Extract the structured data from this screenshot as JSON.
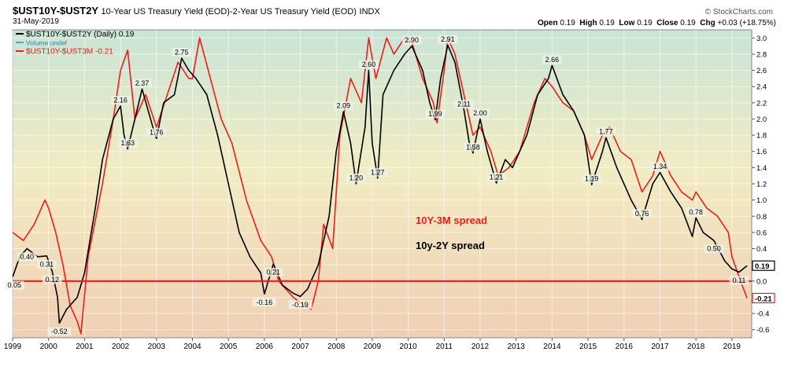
{
  "header": {
    "symbol": "$UST10Y-$UST2Y",
    "description": "10-Year US Treasury Yield (EOD)-2-Year US Treasury Yield (EOD)",
    "index_tag": "INDX",
    "date": "31-May-2019",
    "copyright": "© StockCharts.com",
    "ohlc": {
      "open_label": "Open",
      "open": "0.19",
      "high_label": "High",
      "high": "0.19",
      "low_label": "Low",
      "low": "0.19",
      "close_label": "Close",
      "close": "0.19",
      "chg_label": "Chg",
      "chg": "+0.03 (+18.75%)"
    }
  },
  "legend": [
    {
      "label": "$UST10Y-$UST2Y (Daily) 0.19",
      "color": "#000000"
    },
    {
      "label": "Volume undef",
      "color": "#4da6d6"
    },
    {
      "label": "$UST10Y-$UST3M -0.21",
      "color": "#e8201a"
    }
  ],
  "annotations": {
    "spread_3m": "10Y-3M spread",
    "spread_2y": "10y-2Y spread"
  },
  "chart_data": {
    "type": "line",
    "xlim": [
      1999.0,
      2019.55
    ],
    "ylim": [
      -0.7,
      3.1
    ],
    "x_ticks": [
      "1999",
      "2000",
      "2001",
      "2002",
      "2003",
      "2004",
      "2005",
      "2006",
      "2007",
      "2008",
      "2009",
      "2010",
      "2011",
      "2012",
      "2013",
      "2014",
      "2015",
      "2016",
      "2017",
      "2018",
      "2019"
    ],
    "y_ticks": [
      "-0.6",
      "-0.4",
      "-0.2",
      "0.0",
      "0.2",
      "0.4",
      "0.6",
      "0.8",
      "1.0",
      "1.2",
      "1.4",
      "1.6",
      "1.8",
      "2.0",
      "2.2",
      "2.4",
      "2.6",
      "2.8",
      "3.0"
    ],
    "zero_line": 0.0,
    "series": [
      {
        "name": "$UST10Y-$UST2Y (Daily)",
        "color": "#000000",
        "last_value": "0.19",
        "points": [
          [
            1999.0,
            0.05
          ],
          [
            1999.2,
            0.3
          ],
          [
            1999.4,
            0.4
          ],
          [
            1999.7,
            0.3
          ],
          [
            1999.95,
            0.31
          ],
          [
            2000.1,
            0.12
          ],
          [
            2000.25,
            -0.2
          ],
          [
            2000.3,
            -0.52
          ],
          [
            2000.5,
            -0.35
          ],
          [
            2000.8,
            -0.2
          ],
          [
            2001.0,
            0.1
          ],
          [
            2001.3,
            0.9
          ],
          [
            2001.5,
            1.5
          ],
          [
            2001.8,
            2.0
          ],
          [
            2002.0,
            2.16
          ],
          [
            2002.1,
            1.8
          ],
          [
            2002.2,
            1.63
          ],
          [
            2002.4,
            2.0
          ],
          [
            2002.6,
            2.37
          ],
          [
            2002.9,
            1.9
          ],
          [
            2003.0,
            1.76
          ],
          [
            2003.2,
            2.2
          ],
          [
            2003.5,
            2.3
          ],
          [
            2003.7,
            2.75
          ],
          [
            2003.9,
            2.6
          ],
          [
            2004.1,
            2.5
          ],
          [
            2004.4,
            2.3
          ],
          [
            2004.7,
            1.8
          ],
          [
            2005.0,
            1.2
          ],
          [
            2005.3,
            0.6
          ],
          [
            2005.6,
            0.3
          ],
          [
            2005.9,
            0.1
          ],
          [
            2006.0,
            -0.16
          ],
          [
            2006.25,
            0.21
          ],
          [
            2006.5,
            -0.05
          ],
          [
            2006.8,
            -0.15
          ],
          [
            2007.0,
            -0.19
          ],
          [
            2007.2,
            -0.1
          ],
          [
            2007.5,
            0.2
          ],
          [
            2007.8,
            0.8
          ],
          [
            2008.0,
            1.6
          ],
          [
            2008.2,
            2.09
          ],
          [
            2008.4,
            1.7
          ],
          [
            2008.55,
            1.2
          ],
          [
            2008.8,
            1.9
          ],
          [
            2008.9,
            2.6
          ],
          [
            2009.0,
            1.7
          ],
          [
            2009.15,
            1.27
          ],
          [
            2009.3,
            2.3
          ],
          [
            2009.6,
            2.6
          ],
          [
            2009.9,
            2.8
          ],
          [
            2010.1,
            2.9
          ],
          [
            2010.4,
            2.6
          ],
          [
            2010.6,
            2.2
          ],
          [
            2010.75,
            1.99
          ],
          [
            2010.9,
            2.5
          ],
          [
            2011.1,
            2.91
          ],
          [
            2011.3,
            2.7
          ],
          [
            2011.55,
            2.11
          ],
          [
            2011.7,
            1.7
          ],
          [
            2011.8,
            1.58
          ],
          [
            2012.0,
            2.0
          ],
          [
            2012.2,
            1.6
          ],
          [
            2012.45,
            1.21
          ],
          [
            2012.7,
            1.5
          ],
          [
            2012.9,
            1.4
          ],
          [
            2013.3,
            1.8
          ],
          [
            2013.6,
            2.3
          ],
          [
            2013.9,
            2.5
          ],
          [
            2014.0,
            2.66
          ],
          [
            2014.3,
            2.3
          ],
          [
            2014.6,
            2.1
          ],
          [
            2014.9,
            1.8
          ],
          [
            2015.1,
            1.19
          ],
          [
            2015.4,
            1.6
          ],
          [
            2015.5,
            1.77
          ],
          [
            2015.8,
            1.4
          ],
          [
            2016.2,
            1.0
          ],
          [
            2016.5,
            0.76
          ],
          [
            2016.8,
            1.2
          ],
          [
            2017.0,
            1.34
          ],
          [
            2017.3,
            1.1
          ],
          [
            2017.6,
            0.9
          ],
          [
            2017.9,
            0.55
          ],
          [
            2018.0,
            0.78
          ],
          [
            2018.2,
            0.6
          ],
          [
            2018.5,
            0.5
          ],
          [
            2018.8,
            0.25
          ],
          [
            2019.0,
            0.15
          ],
          [
            2019.2,
            0.11
          ],
          [
            2019.42,
            0.19
          ]
        ]
      },
      {
        "name": "$UST10Y-$UST3M",
        "color": "#e8201a",
        "last_value": "-0.21",
        "points": [
          [
            1999.0,
            0.6
          ],
          [
            1999.3,
            0.5
          ],
          [
            1999.6,
            0.7
          ],
          [
            1999.9,
            1.0
          ],
          [
            2000.0,
            0.9
          ],
          [
            2000.2,
            0.6
          ],
          [
            2000.4,
            0.2
          ],
          [
            2000.6,
            -0.3
          ],
          [
            2000.8,
            -0.5
          ],
          [
            2000.9,
            -0.65
          ],
          [
            2001.1,
            0.3
          ],
          [
            2001.5,
            1.2
          ],
          [
            2001.8,
            2.0
          ],
          [
            2002.0,
            2.6
          ],
          [
            2002.2,
            2.85
          ],
          [
            2002.4,
            2.0
          ],
          [
            2002.7,
            2.3
          ],
          [
            2003.0,
            1.9
          ],
          [
            2003.3,
            2.3
          ],
          [
            2003.6,
            2.7
          ],
          [
            2003.9,
            2.5
          ],
          [
            2004.0,
            2.5
          ],
          [
            2004.2,
            3.0
          ],
          [
            2004.5,
            2.5
          ],
          [
            2004.8,
            2.0
          ],
          [
            2005.1,
            1.7
          ],
          [
            2005.5,
            1.0
          ],
          [
            2005.9,
            0.5
          ],
          [
            2006.2,
            0.3
          ],
          [
            2006.4,
            0.0
          ],
          [
            2006.8,
            -0.2
          ],
          [
            2007.1,
            -0.3
          ],
          [
            2007.3,
            -0.35
          ],
          [
            2007.5,
            0.0
          ],
          [
            2007.65,
            0.7
          ],
          [
            2007.9,
            0.4
          ],
          [
            2008.1,
            1.8
          ],
          [
            2008.4,
            2.5
          ],
          [
            2008.7,
            2.2
          ],
          [
            2008.9,
            3.0
          ],
          [
            2009.1,
            2.5
          ],
          [
            2009.4,
            3.0
          ],
          [
            2009.6,
            2.8
          ],
          [
            2009.9,
            3.0
          ],
          [
            2010.1,
            2.95
          ],
          [
            2010.4,
            2.5
          ],
          [
            2010.7,
            2.2
          ],
          [
            2010.8,
            1.95
          ],
          [
            2011.0,
            2.6
          ],
          [
            2011.1,
            3.0
          ],
          [
            2011.3,
            2.8
          ],
          [
            2011.6,
            2.2
          ],
          [
            2011.8,
            1.8
          ],
          [
            2012.0,
            1.9
          ],
          [
            2012.3,
            1.6
          ],
          [
            2012.5,
            1.3
          ],
          [
            2012.8,
            1.4
          ],
          [
            2013.1,
            1.6
          ],
          [
            2013.5,
            2.2
          ],
          [
            2013.8,
            2.5
          ],
          [
            2014.0,
            2.4
          ],
          [
            2014.3,
            2.2
          ],
          [
            2014.6,
            2.1
          ],
          [
            2014.9,
            1.8
          ],
          [
            2015.1,
            1.5
          ],
          [
            2015.4,
            1.8
          ],
          [
            2015.6,
            1.9
          ],
          [
            2015.9,
            1.6
          ],
          [
            2016.2,
            1.5
          ],
          [
            2016.5,
            1.1
          ],
          [
            2016.8,
            1.3
          ],
          [
            2017.0,
            1.6
          ],
          [
            2017.3,
            1.3
          ],
          [
            2017.6,
            1.1
          ],
          [
            2017.9,
            1.0
          ],
          [
            2018.0,
            1.1
          ],
          [
            2018.3,
            0.9
          ],
          [
            2018.6,
            0.8
          ],
          [
            2018.9,
            0.6
          ],
          [
            2019.0,
            0.3
          ],
          [
            2019.2,
            0.05
          ],
          [
            2019.42,
            -0.21
          ]
        ]
      }
    ],
    "labels_2y": [
      {
        "x": 1999.05,
        "y": 0.05,
        "text": "0.05"
      },
      {
        "x": 1999.4,
        "y": 0.4,
        "text": "0.40"
      },
      {
        "x": 1999.95,
        "y": 0.31,
        "text": "0.31"
      },
      {
        "x": 2000.1,
        "y": 0.12,
        "text": "0.12"
      },
      {
        "x": 2000.3,
        "y": -0.52,
        "text": "-0.52"
      },
      {
        "x": 2002.0,
        "y": 2.16,
        "text": "2.16"
      },
      {
        "x": 2002.2,
        "y": 1.63,
        "text": "1.63"
      },
      {
        "x": 2002.6,
        "y": 2.37,
        "text": "2.37"
      },
      {
        "x": 2003.0,
        "y": 1.76,
        "text": "1.76"
      },
      {
        "x": 2003.7,
        "y": 2.75,
        "text": "2.75"
      },
      {
        "x": 2006.0,
        "y": -0.16,
        "text": "-0.16"
      },
      {
        "x": 2006.25,
        "y": 0.21,
        "text": "0.21"
      },
      {
        "x": 2007.0,
        "y": -0.19,
        "text": "-0.19"
      },
      {
        "x": 2008.2,
        "y": 2.09,
        "text": "2.09"
      },
      {
        "x": 2008.55,
        "y": 1.2,
        "text": "1.20"
      },
      {
        "x": 2008.9,
        "y": 2.6,
        "text": "2.60"
      },
      {
        "x": 2009.15,
        "y": 1.27,
        "text": "1.27"
      },
      {
        "x": 2010.1,
        "y": 2.9,
        "text": "2.90"
      },
      {
        "x": 2010.75,
        "y": 1.99,
        "text": "1.99"
      },
      {
        "x": 2011.1,
        "y": 2.91,
        "text": "2.91"
      },
      {
        "x": 2011.55,
        "y": 2.11,
        "text": "2.11"
      },
      {
        "x": 2011.8,
        "y": 1.58,
        "text": "1.58"
      },
      {
        "x": 2012.0,
        "y": 2.0,
        "text": "2.00"
      },
      {
        "x": 2012.45,
        "y": 1.21,
        "text": "1.21"
      },
      {
        "x": 2014.0,
        "y": 2.66,
        "text": "2.66"
      },
      {
        "x": 2015.1,
        "y": 1.19,
        "text": "1.19"
      },
      {
        "x": 2015.5,
        "y": 1.77,
        "text": "1.77"
      },
      {
        "x": 2016.5,
        "y": 0.76,
        "text": "0.76"
      },
      {
        "x": 2017.0,
        "y": 1.34,
        "text": "1.34"
      },
      {
        "x": 2018.0,
        "y": 0.78,
        "text": "0.78"
      },
      {
        "x": 2018.5,
        "y": 0.5,
        "text": "0.50"
      },
      {
        "x": 2019.2,
        "y": 0.11,
        "text": "0.11"
      }
    ]
  }
}
